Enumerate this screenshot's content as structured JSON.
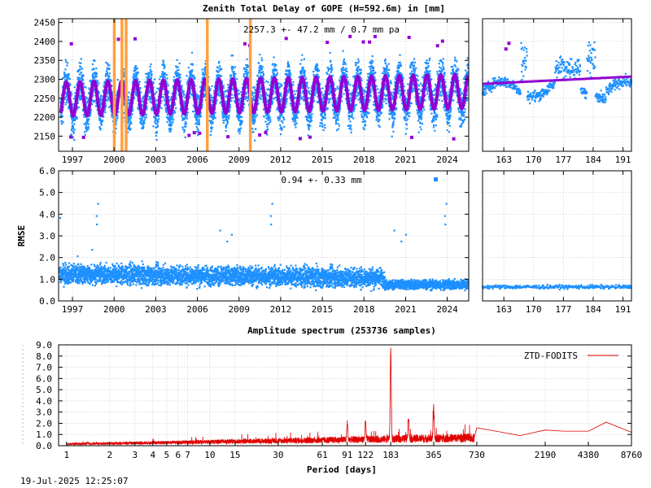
{
  "title": "Zenith Total Delay of GOPE (H=592.6m) in [mm]",
  "footer_timestamp": "19-Jul-2025 12:25:07",
  "colors": {
    "data": "#1e90ff",
    "model": "#9400d3",
    "outlier": "#9400d3",
    "event": "#ffa040",
    "spectrum": "#e00000"
  },
  "chart_data": [
    {
      "id": "ztd",
      "type": "scatter",
      "title": "Zenith Total Delay of GOPE (H=592.6m) in [mm]",
      "annotation": "2257.3 +-  47.2 mm /  0.7 mm pa",
      "xlim": [
        1996.0,
        2025.55
      ],
      "ylim": [
        2110,
        2460
      ],
      "xticks": [
        1997,
        2000,
        2003,
        2006,
        2009,
        2012,
        2015,
        2018,
        2021,
        2024
      ],
      "yticks": [
        2150,
        2200,
        2250,
        2300,
        2350,
        2400,
        2450
      ],
      "mean_mm": 2257.3,
      "std_mm": 47.2,
      "trend_mm_per_year": 0.7,
      "seasonal_amplitude_mm": 45,
      "event_lines": [
        2000.0,
        2000.55,
        2000.85,
        2006.7,
        2009.8
      ],
      "grid": true
    },
    {
      "id": "ztd-recent",
      "type": "scatter",
      "xlim": [
        158,
        193
      ],
      "ylim": [
        2110,
        2460
      ],
      "xticks": [
        163,
        170,
        177,
        184,
        191
      ]
    },
    {
      "id": "rmse",
      "type": "scatter",
      "ylabel": "RMSE",
      "annotation": "0.94 +-  0.33 mm",
      "xlim": [
        1996.0,
        2025.55
      ],
      "ylim": [
        0.0,
        6.0
      ],
      "xticks": [
        1997,
        2000,
        2003,
        2006,
        2009,
        2012,
        2015,
        2018,
        2021,
        2024
      ],
      "yticks": [
        0.0,
        1.0,
        2.0,
        3.0,
        4.0,
        5.0,
        6.0
      ],
      "mean_mm": 0.94,
      "std_mm": 0.33,
      "grid": true
    },
    {
      "id": "rmse-recent",
      "type": "scatter",
      "xlim": [
        158,
        193
      ],
      "ylim": [
        0.0,
        6.0
      ],
      "xticks": [
        163,
        170,
        177,
        184,
        191
      ],
      "level_mm": 0.65
    },
    {
      "id": "spectrum",
      "type": "line",
      "title": "Amplitude spectrum (253736 samples)",
      "xlabel": "Period [days]",
      "legend": "ZTD-FODITS",
      "legend_position": "top-right",
      "xscale": "log",
      "xlim": [
        0.88,
        8760
      ],
      "ylim": [
        0.0,
        9.0
      ],
      "xticks": [
        1,
        2,
        3,
        4,
        5,
        6,
        7,
        10,
        15,
        30,
        61,
        91,
        122,
        183,
        365,
        730,
        2190,
        4380,
        8760
      ],
      "yticks": [
        0.0,
        1.0,
        2.0,
        3.0,
        4.0,
        5.0,
        6.0,
        7.0,
        8.0,
        9.0
      ],
      "peaks": [
        {
          "period": 183,
          "amplitude": 7.9
        },
        {
          "period": 365,
          "amplitude": 2.7
        },
        {
          "period": 243,
          "amplitude": 2.0
        },
        {
          "period": 122,
          "amplitude": 1.6
        },
        {
          "period": 91,
          "amplitude": 1.5
        }
      ],
      "low_freq": [
        {
          "period": 730,
          "amplitude": 1.6
        },
        {
          "period": 1095,
          "amplitude": 1.2
        },
        {
          "period": 1460,
          "amplitude": 0.9
        },
        {
          "period": 2190,
          "amplitude": 1.4
        },
        {
          "period": 2920,
          "amplitude": 1.3
        },
        {
          "period": 4380,
          "amplitude": 1.3
        },
        {
          "period": 5840,
          "amplitude": 2.1
        },
        {
          "period": 8760,
          "amplitude": 1.2
        }
      ],
      "grid": true
    }
  ]
}
